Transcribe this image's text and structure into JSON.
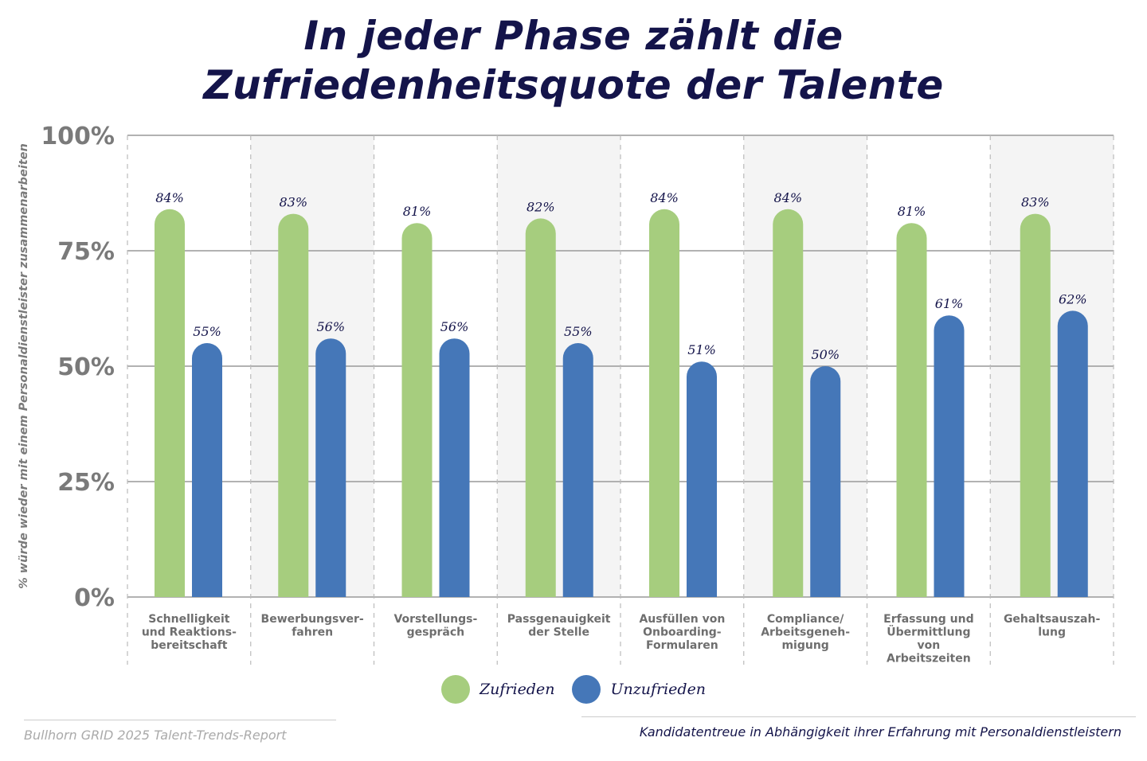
{
  "title_line1": "In jeder Phase zählt die",
  "title_line2": "Zufriedenheitsquote der Talente",
  "chart_data": {
    "type": "bar",
    "ylabel": "% würde wieder mit einem Personaldienstleister zusammenarbeiten",
    "ylim": [
      0,
      100
    ],
    "yticks": [
      "0%",
      "25%",
      "50%",
      "75%",
      "100%"
    ],
    "grid": true,
    "legend_placement": "bottom",
    "categories": [
      [
        "Schnelligkeit",
        "und Reaktions-",
        "bereitschaft"
      ],
      [
        "Bewerbungsver-",
        "fahren"
      ],
      [
        "Vorstellungs-",
        "gespräch"
      ],
      [
        "Passgenauigkeit",
        "der Stelle"
      ],
      [
        "Ausfüllen von",
        "Onboarding-",
        "Formularen"
      ],
      [
        "Compliance/",
        "Arbeitsgeneh-",
        "migung"
      ],
      [
        "Erfassung und",
        "Übermittlung",
        "von",
        "Arbeitszeiten"
      ],
      [
        "Gehaltsauszah-",
        "lung"
      ]
    ],
    "series": [
      {
        "name": "Zufrieden",
        "color": "#a6cd7e",
        "values": [
          84,
          83,
          81,
          82,
          84,
          84,
          81,
          83
        ],
        "labels": [
          "84%",
          "83%",
          "81%",
          "82%",
          "84%",
          "84%",
          "81%",
          "83%"
        ]
      },
      {
        "name": "Unzufrieden",
        "color": "#4577b8",
        "values": [
          55,
          56,
          56,
          55,
          51,
          50,
          61,
          62
        ],
        "labels": [
          "55%",
          "56%",
          "56%",
          "55%",
          "51%",
          "50%",
          "61%",
          "62%"
        ]
      }
    ]
  },
  "source": "Bullhorn GRID 2025 Talent-Trends-Report",
  "note": "Kandidatentreue in Abhängigkeit ihrer Erfahrung mit Personaldienstleistern"
}
